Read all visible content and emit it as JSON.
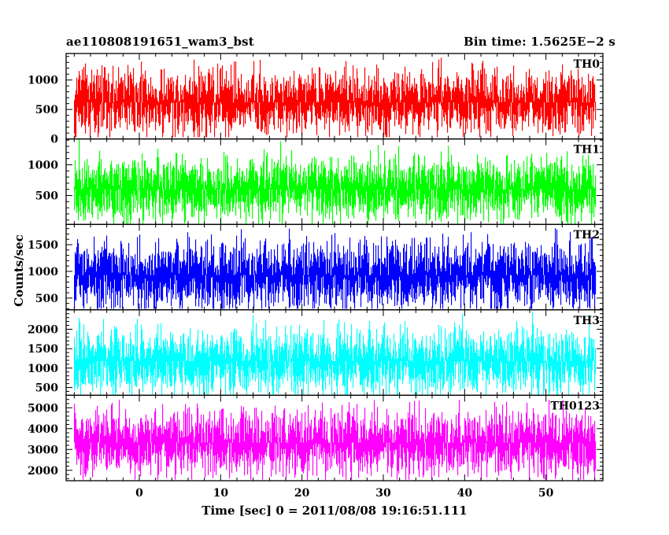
{
  "header": {
    "left": "ae110808191651_wam3_bst",
    "right": "Bin time: 1.5625E−2 s"
  },
  "chart_data": {
    "type": "line",
    "xlabel": "Time [sec] 0 = 2011/08/08 19:16:51.111",
    "ylabel": "Counts/sec",
    "xlim": [
      -9,
      57
    ],
    "x_ticks": [
      0,
      10,
      20,
      30,
      40,
      50
    ],
    "x_range_data": [
      -8,
      56
    ],
    "bin_time_s": 0.015625,
    "grid": false,
    "panels": [
      {
        "name": "TH0",
        "color": "#ff0000",
        "ylim": [
          0,
          1450
        ],
        "y_ticks": [
          0,
          500,
          1000
        ],
        "mean": 620,
        "spread": 270,
        "min": 30,
        "max": 1450
      },
      {
        "name": "TH1",
        "color": "#00ff00",
        "ylim": [
          30,
          1420
        ],
        "y_ticks": [
          500,
          1000
        ],
        "mean": 600,
        "spread": 260,
        "min": 40,
        "max": 1420
      },
      {
        "name": "TH2",
        "color": "#0000ff",
        "ylim": [
          280,
          1880
        ],
        "y_ticks": [
          500,
          1000,
          1500
        ],
        "mean": 930,
        "spread": 320,
        "min": 300,
        "max": 1880
      },
      {
        "name": "TH3",
        "color": "#00ffff",
        "ylim": [
          300,
          2500
        ],
        "y_ticks": [
          500,
          1000,
          1500,
          2000
        ],
        "mean": 1180,
        "spread": 430,
        "min": 320,
        "max": 2500
      },
      {
        "name": "TH0123",
        "color": "#ff00ff",
        "ylim": [
          1500,
          5600
        ],
        "y_ticks": [
          2000,
          3000,
          4000,
          5000
        ],
        "mean": 3330,
        "spread": 780,
        "min": 1550,
        "max": 5600
      }
    ]
  }
}
